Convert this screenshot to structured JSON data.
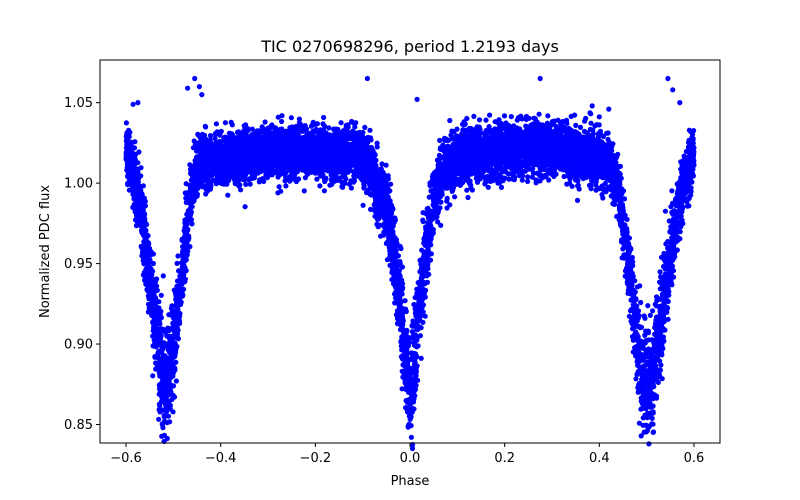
{
  "chart_data": {
    "type": "scatter",
    "title": "TIC 0270698296, period 1.2193 days",
    "xlabel": "Phase",
    "ylabel": "Normalized PDC flux",
    "xlim": [
      -0.655,
      0.655
    ],
    "ylim": [
      0.8385,
      1.0765
    ],
    "xticks": [
      -0.6,
      -0.4,
      -0.2,
      0.0,
      0.2,
      0.4,
      0.6
    ],
    "xtick_labels": [
      "−0.6",
      "−0.4",
      "−0.2",
      "0.0",
      "0.2",
      "0.4",
      "0.6"
    ],
    "yticks": [
      0.85,
      0.9,
      0.95,
      1.0,
      1.05
    ],
    "ytick_labels": [
      "0.85",
      "0.90",
      "0.95",
      "1.00",
      "1.05"
    ],
    "grid": false,
    "legend": "none",
    "point_color": "#0000ff",
    "series": [
      {
        "x_range": [
          -0.6,
          0.6
        ],
        "model_profile": {
          "x": [
            -0.6,
            -0.585,
            -0.57,
            -0.55,
            -0.53,
            -0.515,
            -0.5,
            -0.485,
            -0.47,
            -0.455,
            -0.44,
            -0.42,
            -0.4,
            -0.3,
            -0.2,
            -0.12,
            -0.09,
            -0.07,
            -0.05,
            -0.035,
            -0.02,
            -0.01,
            0.0,
            0.01,
            0.02,
            0.035,
            0.05,
            0.07,
            0.09,
            0.12,
            0.2,
            0.3,
            0.4,
            0.42,
            0.44,
            0.455,
            0.47,
            0.485,
            0.5,
            0.515,
            0.53,
            0.55,
            0.57,
            0.585,
            0.6
          ],
          "flux": [
            1.02,
            1.005,
            0.985,
            0.94,
            0.895,
            0.872,
            0.895,
            0.935,
            0.975,
            1.005,
            1.012,
            1.014,
            1.014,
            1.02,
            1.021,
            1.017,
            1.012,
            1.0,
            0.985,
            0.96,
            0.925,
            0.895,
            0.865,
            0.893,
            0.925,
            0.96,
            0.99,
            1.008,
            1.013,
            1.017,
            1.021,
            1.022,
            1.015,
            1.012,
            1.0,
            0.965,
            0.93,
            0.89,
            0.872,
            0.88,
            0.91,
            0.955,
            0.99,
            1.005,
            1.02
          ]
        },
        "scatter_sigma": 0.008,
        "point_count": 9000
      }
    ],
    "outliers": [
      {
        "x": -0.585,
        "y": 1.049
      },
      {
        "x": -0.575,
        "y": 1.05
      },
      {
        "x": -0.47,
        "y": 1.059
      },
      {
        "x": -0.455,
        "y": 1.065
      },
      {
        "x": -0.445,
        "y": 1.06
      },
      {
        "x": -0.44,
        "y": 1.055
      },
      {
        "x": -0.09,
        "y": 1.065
      },
      {
        "x": 0.015,
        "y": 1.052
      },
      {
        "x": 0.275,
        "y": 1.065
      },
      {
        "x": 0.385,
        "y": 1.048
      },
      {
        "x": 0.42,
        "y": 1.046
      },
      {
        "x": 0.545,
        "y": 1.065
      },
      {
        "x": 0.555,
        "y": 1.058
      },
      {
        "x": 0.57,
        "y": 1.05
      }
    ]
  }
}
